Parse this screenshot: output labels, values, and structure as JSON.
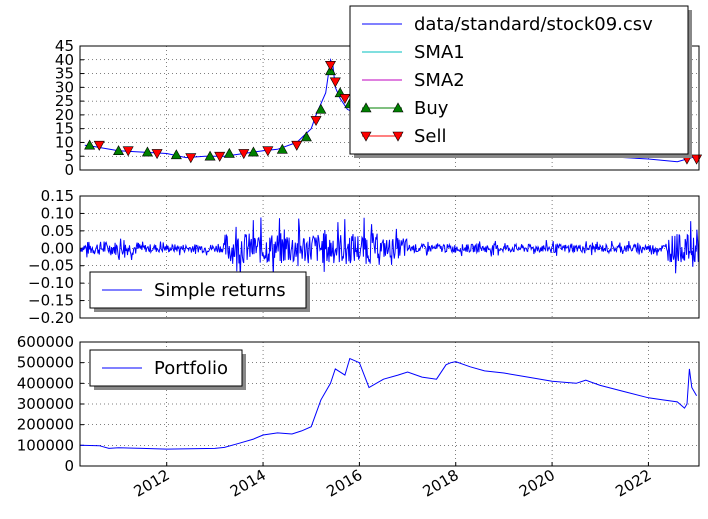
{
  "chart_data": [
    {
      "type": "line",
      "panel": "price",
      "ylim": [
        0,
        45
      ],
      "yticks": [
        0,
        5,
        10,
        15,
        20,
        25,
        30,
        35,
        40,
        45
      ],
      "grid": true,
      "legend_placement": "upper-right",
      "series": [
        {
          "name": "data/standard/stock09.csv",
          "color": "#0000ff",
          "x": [
            2010.3,
            2010.5,
            2011.0,
            2011.5,
            2012.0,
            2012.4,
            2012.8,
            2013.2,
            2013.6,
            2014.0,
            2014.3,
            2014.7,
            2015.0,
            2015.1,
            2015.3,
            2015.4,
            2015.45,
            2015.5,
            2015.6,
            2015.75,
            2016.0,
            2016.5,
            2017.0,
            2017.5,
            2018.0,
            2019.0,
            2020.0,
            2021.0,
            2022.0,
            2022.6,
            2022.8,
            2023.0
          ],
          "y": [
            9,
            8.5,
            7,
            6.5,
            6,
            4.5,
            5,
            5,
            6,
            7,
            7.5,
            10,
            15,
            20,
            28,
            40,
            38,
            30,
            26,
            22,
            20,
            17,
            15,
            13,
            11,
            8,
            6,
            5,
            4,
            3,
            4,
            5
          ]
        },
        {
          "name": "SMA1",
          "color": "#00bfbf"
        },
        {
          "name": "SMA2",
          "color": "#bf00bf"
        },
        {
          "name": "Buy",
          "color": "#008000",
          "marker": "triangle-up",
          "x": [
            2010.4,
            2011.0,
            2011.6,
            2012.2,
            2012.9,
            2013.3,
            2013.8,
            2014.4,
            2014.9,
            2015.2,
            2015.4,
            2015.6,
            2015.8,
            2016.0
          ],
          "y": [
            9,
            7,
            6.5,
            5.5,
            5,
            6,
            6.5,
            7.5,
            12,
            22,
            36,
            28,
            24,
            20
          ]
        },
        {
          "name": "Sell",
          "color": "#ff0000",
          "marker": "triangle-down",
          "x": [
            2010.6,
            2011.2,
            2011.8,
            2012.5,
            2013.1,
            2013.6,
            2014.1,
            2014.7,
            2015.1,
            2015.4,
            2015.5,
            2015.7,
            2015.9,
            2016.1,
            2022.8,
            2023.0
          ],
          "y": [
            9,
            7,
            6,
            4.5,
            5,
            6,
            7,
            9,
            18,
            38,
            32,
            26,
            22,
            19,
            4,
            4
          ]
        }
      ]
    },
    {
      "type": "line",
      "panel": "returns",
      "ylim": [
        -0.2,
        0.15
      ],
      "yticks": [
        -0.2,
        -0.15,
        -0.1,
        -0.05,
        0.0,
        0.05,
        0.1,
        0.15
      ],
      "ytick_labels": [
        "−0.20",
        "−0.15",
        "−0.10",
        "−0.05",
        "0.00",
        "0.05",
        "0.10",
        "0.15"
      ],
      "grid": true,
      "legend_placement": "lower-left",
      "series": [
        {
          "name": "Simple returns",
          "color": "#0000ff"
        }
      ]
    },
    {
      "type": "line",
      "panel": "portfolio",
      "ylim": [
        0,
        600000
      ],
      "yticks": [
        0,
        100000,
        200000,
        300000,
        400000,
        500000,
        600000
      ],
      "grid": true,
      "legend_placement": "upper-left",
      "xlim": [
        2010.2,
        2023.05
      ],
      "xticks": [
        2012,
        2014,
        2016,
        2018,
        2020,
        2022
      ],
      "series": [
        {
          "name": "Portfolio",
          "color": "#0000ff",
          "x": [
            2010.2,
            2010.6,
            2010.8,
            2011.0,
            2011.5,
            2012.0,
            2012.5,
            2013.0,
            2013.2,
            2013.5,
            2013.8,
            2014.0,
            2014.3,
            2014.6,
            2014.8,
            2015.0,
            2015.2,
            2015.4,
            2015.5,
            2015.7,
            2015.8,
            2016.0,
            2016.2,
            2016.5,
            2016.8,
            2017.0,
            2017.3,
            2017.6,
            2017.8,
            2017.9,
            2018.0,
            2018.3,
            2018.6,
            2019.0,
            2019.5,
            2020.0,
            2020.5,
            2020.7,
            2021.0,
            2021.5,
            2022.0,
            2022.3,
            2022.6,
            2022.75,
            2022.8,
            2022.85,
            2022.9,
            2023.0
          ],
          "y": [
            100000,
            98000,
            85000,
            88000,
            85000,
            82000,
            83000,
            85000,
            90000,
            110000,
            130000,
            150000,
            160000,
            155000,
            170000,
            190000,
            320000,
            400000,
            470000,
            440000,
            520000,
            500000,
            380000,
            420000,
            440000,
            455000,
            430000,
            420000,
            490000,
            500000,
            505000,
            480000,
            460000,
            450000,
            430000,
            410000,
            400000,
            415000,
            390000,
            360000,
            330000,
            320000,
            310000,
            280000,
            300000,
            470000,
            380000,
            340000
          ]
        }
      ]
    }
  ]
}
